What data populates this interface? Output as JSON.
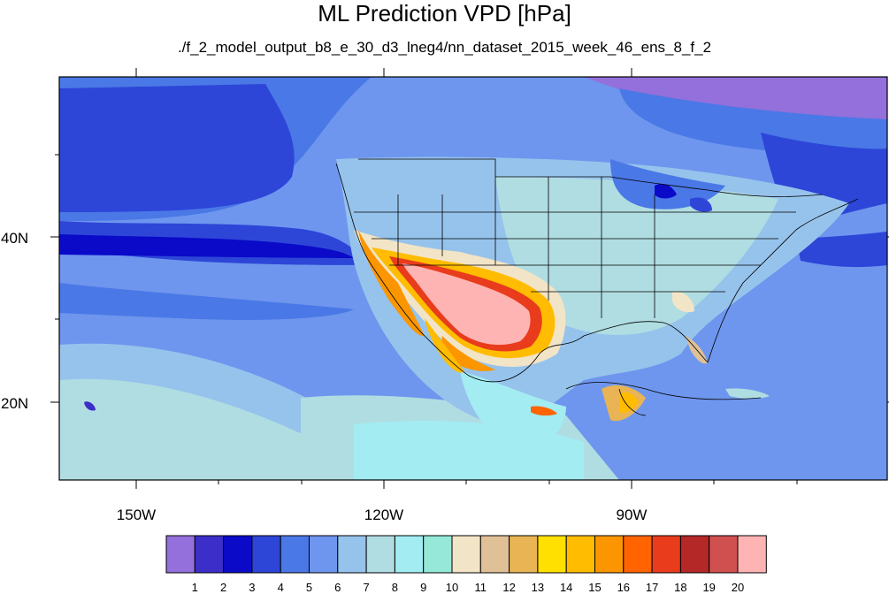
{
  "title": "ML Prediction VPD [hPa]",
  "subtitle": "./f_2_model_output_b8_e_30_d3_lneg4/nn_dataset_2015_week_46_ens_8_f_2",
  "axes": {
    "lat_labels": [
      "40N",
      "20N"
    ],
    "lon_labels": [
      "150W",
      "120W",
      "90W"
    ]
  },
  "colorbar": {
    "colors": [
      "#9370db",
      "#3c2ec8",
      "#0a0ac8",
      "#2d46d8",
      "#4a78e6",
      "#6e96ee",
      "#96c3ec",
      "#b0dde2",
      "#a2ecf2",
      "#96e8d8",
      "#f2e4c6",
      "#e0c096",
      "#e8b454",
      "#ffe000",
      "#ffbc00",
      "#fb9600",
      "#ff6400",
      "#e83c1c",
      "#b42828",
      "#d05050",
      "#ffb4b4"
    ],
    "labels": [
      "1",
      "2",
      "3",
      "4",
      "5",
      "6",
      "7",
      "8",
      "9",
      "10",
      "11",
      "12",
      "13",
      "14",
      "15",
      "16",
      "17",
      "18",
      "19",
      "20"
    ]
  }
}
